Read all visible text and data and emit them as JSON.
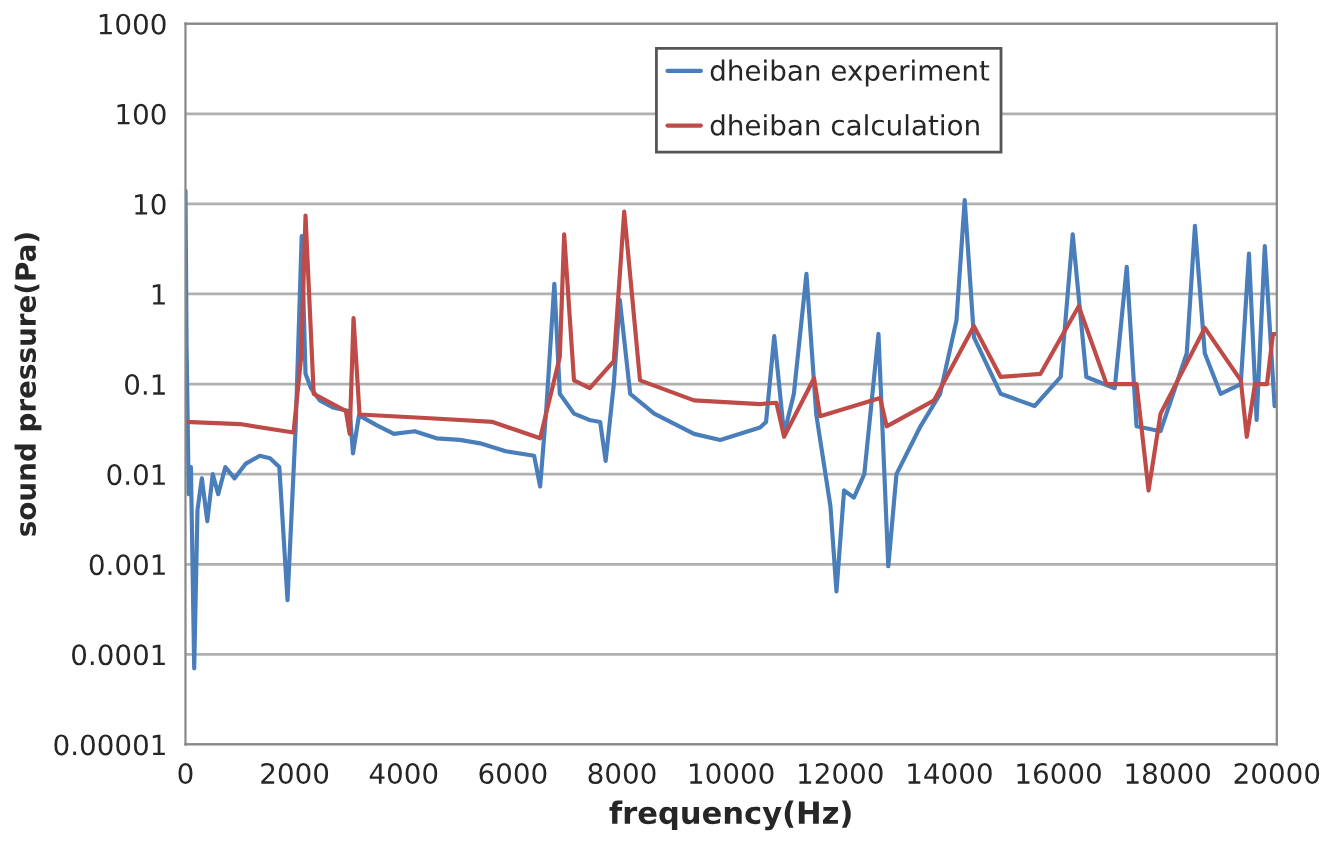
{
  "chart_data": {
    "type": "line",
    "xlabel": "frequency(Hz)",
    "ylabel": "sound pressure(Pa)",
    "log": "y",
    "grid": "y",
    "legend": "top right",
    "xlim": [
      0,
      20000
    ],
    "xticks": [
      0,
      2000,
      4000,
      6000,
      8000,
      10000,
      12000,
      14000,
      16000,
      18000,
      20000
    ],
    "ylim": [
      1e-05,
      1000
    ],
    "yticks": [
      {
        "value": 1e-05,
        "label": "0.00001"
      },
      {
        "value": 0.0001,
        "label": "0.0001"
      },
      {
        "value": 0.001,
        "label": "0.001"
      },
      {
        "value": 0.01,
        "label": "0.01"
      },
      {
        "value": 0.1,
        "label": "0.1"
      },
      {
        "value": 1,
        "label": "1"
      },
      {
        "value": 10,
        "label": "10"
      },
      {
        "value": 100,
        "label": "100"
      },
      {
        "value": 1000,
        "label": "1000"
      }
    ],
    "series": [
      {
        "name": "dheiban experiment",
        "color": "#4a7ebb",
        "x": [
          0,
          20,
          60,
          100,
          160,
          220,
          300,
          400,
          500,
          600,
          730,
          900,
          1100,
          1360,
          1550,
          1720,
          1870,
          2020,
          2130,
          2200,
          2300,
          2460,
          2700,
          3010,
          3070,
          3180,
          3500,
          3820,
          4200,
          4600,
          5030,
          5400,
          5870,
          6390,
          6500,
          6610,
          6760,
          6860,
          7120,
          7400,
          7600,
          7700,
          7850,
          7960,
          8150,
          8590,
          9320,
          9800,
          10530,
          10640,
          10790,
          10970,
          11150,
          11380,
          11560,
          11820,
          11930,
          12070,
          12250,
          12440,
          12700,
          12880,
          13030,
          13470,
          13830,
          14130,
          14280,
          14450,
          14940,
          15560,
          16040,
          16260,
          16510,
          17030,
          17250,
          17430,
          17870,
          18350,
          18500,
          18680,
          18970,
          19340,
          19490,
          19630,
          19780,
          19960
        ],
        "values": [
          14,
          0.26,
          0.006,
          0.012,
          7e-05,
          0.004,
          0.009,
          0.003,
          0.01,
          0.006,
          0.012,
          0.009,
          0.013,
          0.016,
          0.015,
          0.012,
          0.0004,
          0.034,
          4.4,
          0.13,
          0.09,
          0.066,
          0.055,
          0.05,
          0.017,
          0.045,
          0.035,
          0.028,
          0.03,
          0.025,
          0.024,
          0.022,
          0.018,
          0.016,
          0.0073,
          0.05,
          1.3,
          0.078,
          0.047,
          0.04,
          0.038,
          0.014,
          0.1,
          0.86,
          0.078,
          0.047,
          0.028,
          0.024,
          0.033,
          0.038,
          0.34,
          0.028,
          0.078,
          1.67,
          0.046,
          0.0044,
          0.0005,
          0.0066,
          0.0055,
          0.01,
          0.36,
          0.00095,
          0.01,
          0.034,
          0.078,
          0.51,
          11,
          0.33,
          0.078,
          0.057,
          0.12,
          4.6,
          0.12,
          0.09,
          2.0,
          0.034,
          0.03,
          0.22,
          5.7,
          0.22,
          0.078,
          0.1,
          2.8,
          0.04,
          3.4,
          0.057
        ]
      },
      {
        "name": "dheiban calculation",
        "color": "#be4b48",
        "x": [
          0,
          1000,
          1980,
          2120,
          2200,
          2350,
          2940,
          3010,
          3080,
          3190,
          4400,
          5630,
          6500,
          6860,
          6940,
          7120,
          7410,
          7850,
          8040,
          8330,
          9320,
          10530,
          10830,
          10970,
          11520,
          11630,
          12730,
          12850,
          13720,
          14450,
          14940,
          15670,
          16370,
          16880,
          17430,
          17650,
          17870,
          18680,
          19340,
          19450,
          19600,
          19820,
          19930,
          20000
        ],
        "values": [
          0.038,
          0.036,
          0.029,
          0.2,
          7.4,
          0.078,
          0.05,
          0.028,
          0.54,
          0.046,
          0.042,
          0.038,
          0.025,
          0.2,
          4.6,
          0.11,
          0.09,
          0.18,
          8.2,
          0.11,
          0.066,
          0.06,
          0.062,
          0.026,
          0.116,
          0.044,
          0.07,
          0.034,
          0.066,
          0.44,
          0.12,
          0.13,
          0.73,
          0.1,
          0.1,
          0.0066,
          0.047,
          0.42,
          0.11,
          0.026,
          0.1,
          0.1,
          0.36,
          0.36
        ]
      }
    ]
  }
}
